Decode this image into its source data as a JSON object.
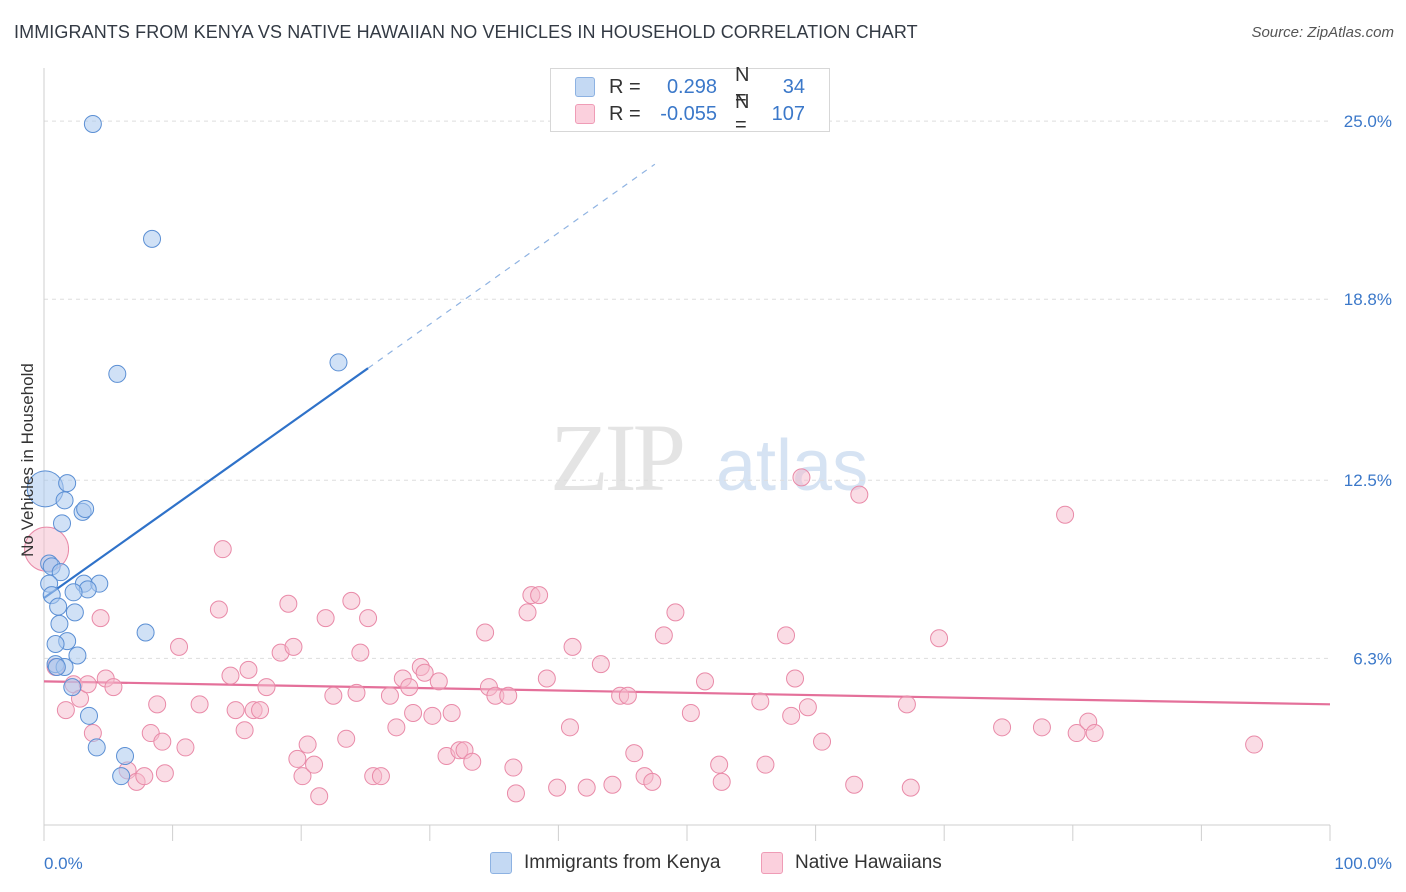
{
  "title": "IMMIGRANTS FROM KENYA VS NATIVE HAWAIIAN NO VEHICLES IN HOUSEHOLD CORRELATION CHART",
  "source": "Source: ZipAtlas.com",
  "watermark": {
    "zip": "ZIP",
    "atlas": "atlas"
  },
  "legend": {
    "rows": [
      {
        "r_label": "R =",
        "r_value": "0.298",
        "n_label": "N =",
        "n_value": "34"
      },
      {
        "r_label": "R =",
        "r_value": "-0.055",
        "n_label": "N =",
        "n_value": "107"
      }
    ]
  },
  "bottom_legend": [
    "Immigrants from Kenya",
    "Native Hawaiians"
  ],
  "colors": {
    "kenya_fill": "#a9c8ee",
    "kenya_stroke": "#5b8fd4",
    "kenya_line": "#2f72c9",
    "hawaii_fill": "#f6b9cc",
    "hawaii_stroke": "#e98aa8",
    "hawaii_line": "#e4709a",
    "grid": "#dddddd",
    "axis_label": "#3b78c9"
  },
  "chart_data": {
    "type": "scatter",
    "title": "IMMIGRANTS FROM KENYA VS NATIVE HAWAIIAN NO VEHICLES IN HOUSEHOLD CORRELATION CHART",
    "xlabel": "",
    "ylabel": "No Vehicles in Household",
    "xlim": [
      0,
      100
    ],
    "ylim": [
      0.5,
      26.5
    ],
    "x_tick_labels": [
      "0.0%",
      "100.0%"
    ],
    "y_ticks": [
      6.3,
      12.5,
      18.8,
      25.0
    ],
    "y_tick_labels": [
      "6.3%",
      "12.5%",
      "18.8%",
      "25.0%"
    ],
    "series": [
      {
        "name": "Immigrants from Kenya",
        "r": 0.298,
        "n": 34,
        "trend": {
          "x0": 0.0,
          "y0": 8.4,
          "x1": 25.2,
          "y1": 16.4,
          "dash_to_x": 47.5,
          "dash_to_y": 23.5
        },
        "points": [
          [
            3.8,
            24.9
          ],
          [
            8.4,
            20.9
          ],
          [
            5.7,
            16.2
          ],
          [
            22.9,
            16.6
          ],
          [
            0.1,
            12.2
          ],
          [
            1.8,
            12.4
          ],
          [
            1.6,
            11.8
          ],
          [
            3.0,
            11.4
          ],
          [
            3.2,
            11.5
          ],
          [
            1.4,
            11.0
          ],
          [
            0.4,
            9.6
          ],
          [
            0.6,
            9.5
          ],
          [
            1.3,
            9.3
          ],
          [
            0.4,
            8.9
          ],
          [
            3.1,
            8.9
          ],
          [
            4.3,
            8.9
          ],
          [
            3.4,
            8.7
          ],
          [
            2.3,
            8.6
          ],
          [
            0.6,
            8.5
          ],
          [
            1.1,
            8.1
          ],
          [
            2.4,
            7.9
          ],
          [
            1.2,
            7.5
          ],
          [
            7.9,
            7.2
          ],
          [
            1.8,
            6.9
          ],
          [
            0.9,
            6.8
          ],
          [
            2.6,
            6.4
          ],
          [
            0.9,
            6.1
          ],
          [
            1.6,
            6.0
          ],
          [
            2.2,
            5.3
          ],
          [
            3.5,
            4.3
          ],
          [
            4.1,
            3.2
          ],
          [
            6.3,
            2.9
          ],
          [
            6.0,
            2.2
          ],
          [
            1.0,
            6.0
          ]
        ]
      },
      {
        "name": "Native Hawaiians",
        "r": -0.055,
        "n": 107,
        "trend": {
          "x0": 0.0,
          "y0": 5.5,
          "x1": 100.0,
          "y1": 4.7
        },
        "points": [
          [
            0.2,
            10.1
          ],
          [
            0.9,
            6.0
          ],
          [
            1.7,
            4.5
          ],
          [
            2.3,
            5.4
          ],
          [
            2.8,
            4.9
          ],
          [
            3.4,
            5.4
          ],
          [
            3.8,
            3.7
          ],
          [
            4.4,
            7.7
          ],
          [
            4.8,
            5.6
          ],
          [
            5.4,
            5.3
          ],
          [
            6.5,
            2.4
          ],
          [
            7.2,
            2.0
          ],
          [
            7.8,
            2.2
          ],
          [
            8.3,
            3.7
          ],
          [
            8.8,
            4.7
          ],
          [
            9.2,
            3.4
          ],
          [
            9.4,
            2.3
          ],
          [
            10.5,
            6.7
          ],
          [
            11.0,
            3.2
          ],
          [
            12.1,
            4.7
          ],
          [
            13.6,
            8.0
          ],
          [
            13.9,
            10.1
          ],
          [
            14.5,
            5.7
          ],
          [
            14.9,
            4.5
          ],
          [
            15.6,
            3.8
          ],
          [
            15.9,
            5.9
          ],
          [
            16.3,
            4.5
          ],
          [
            16.8,
            4.5
          ],
          [
            17.3,
            5.3
          ],
          [
            18.4,
            6.5
          ],
          [
            19.0,
            8.2
          ],
          [
            19.4,
            6.7
          ],
          [
            19.7,
            2.8
          ],
          [
            20.1,
            2.2
          ],
          [
            20.5,
            3.3
          ],
          [
            21.0,
            2.6
          ],
          [
            21.4,
            1.5
          ],
          [
            21.9,
            7.7
          ],
          [
            22.5,
            5.0
          ],
          [
            23.5,
            3.5
          ],
          [
            23.9,
            8.3
          ],
          [
            24.3,
            5.1
          ],
          [
            24.6,
            6.5
          ],
          [
            25.2,
            7.7
          ],
          [
            25.6,
            2.2
          ],
          [
            26.2,
            2.2
          ],
          [
            26.9,
            5.0
          ],
          [
            27.4,
            3.9
          ],
          [
            27.9,
            5.6
          ],
          [
            28.4,
            5.3
          ],
          [
            28.7,
            4.4
          ],
          [
            29.3,
            6.0
          ],
          [
            29.6,
            5.8
          ],
          [
            30.2,
            4.3
          ],
          [
            30.7,
            5.5
          ],
          [
            31.3,
            2.9
          ],
          [
            31.7,
            4.4
          ],
          [
            32.3,
            3.1
          ],
          [
            32.7,
            3.1
          ],
          [
            33.3,
            2.7
          ],
          [
            34.3,
            7.2
          ],
          [
            34.6,
            5.3
          ],
          [
            35.1,
            5.0
          ],
          [
            36.1,
            5.0
          ],
          [
            36.5,
            2.5
          ],
          [
            36.7,
            1.6
          ],
          [
            37.6,
            7.9
          ],
          [
            37.9,
            8.5
          ],
          [
            38.5,
            8.5
          ],
          [
            39.1,
            5.6
          ],
          [
            39.9,
            1.8
          ],
          [
            40.9,
            3.9
          ],
          [
            41.1,
            6.7
          ],
          [
            42.2,
            1.8
          ],
          [
            43.3,
            6.1
          ],
          [
            44.2,
            1.9
          ],
          [
            44.8,
            5.0
          ],
          [
            45.4,
            5.0
          ],
          [
            45.9,
            3.0
          ],
          [
            46.7,
            2.2
          ],
          [
            47.3,
            2.0
          ],
          [
            48.2,
            7.1
          ],
          [
            49.1,
            7.9
          ],
          [
            50.3,
            4.4
          ],
          [
            51.4,
            5.5
          ],
          [
            52.5,
            2.6
          ],
          [
            52.7,
            2.0
          ],
          [
            55.7,
            4.8
          ],
          [
            56.1,
            2.6
          ],
          [
            57.7,
            7.1
          ],
          [
            58.1,
            4.3
          ],
          [
            58.4,
            5.6
          ],
          [
            58.9,
            12.6
          ],
          [
            59.4,
            4.6
          ],
          [
            60.5,
            3.4
          ],
          [
            63.0,
            1.9
          ],
          [
            63.4,
            12.0
          ],
          [
            67.1,
            4.7
          ],
          [
            67.4,
            1.8
          ],
          [
            69.6,
            7.0
          ],
          [
            74.5,
            3.9
          ],
          [
            77.6,
            3.9
          ],
          [
            79.4,
            11.3
          ],
          [
            80.3,
            3.7
          ],
          [
            81.2,
            4.1
          ],
          [
            81.7,
            3.7
          ],
          [
            94.1,
            3.3
          ]
        ]
      }
    ]
  }
}
